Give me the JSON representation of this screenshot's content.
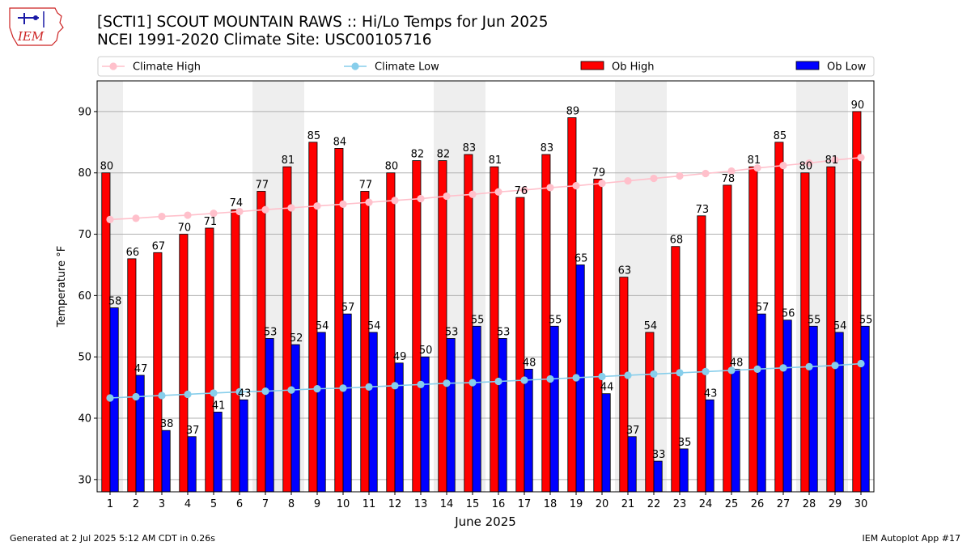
{
  "logo": {
    "text": "IEM",
    "icon": "iem-iowa-logo"
  },
  "title": "[SCTI1] SCOUT MOUNTAIN RAWS :: Hi/Lo Temps for Jun 2025",
  "subtitle": "NCEI 1991-2020 Climate Site: USC00105716",
  "footer": {
    "left": "Generated at 2 Jul 2025 5:12 AM CDT in 0.26s",
    "right": "IEM Autoplot App #17"
  },
  "colors": {
    "ob_high": "#ff0000",
    "ob_low": "#0000ff",
    "climate_high": "#ffc0cb",
    "climate_low": "#87ceeb",
    "weekend_shade": "#eeeeee",
    "grid": "#b0b0b0"
  },
  "chart_data": {
    "type": "bar",
    "xlabel": "June 2025",
    "ylabel": "Temperature °F",
    "ylim": [
      28,
      95
    ],
    "yticks": [
      30,
      40,
      50,
      60,
      70,
      80,
      90
    ],
    "grid": true,
    "legend_position": "top",
    "categories": [
      "1",
      "2",
      "3",
      "4",
      "5",
      "6",
      "7",
      "8",
      "9",
      "10",
      "11",
      "12",
      "13",
      "14",
      "15",
      "16",
      "17",
      "18",
      "19",
      "20",
      "21",
      "22",
      "23",
      "24",
      "25",
      "26",
      "27",
      "28",
      "29",
      "30"
    ],
    "shaded_days": [
      1,
      7,
      8,
      14,
      15,
      21,
      22,
      28,
      29
    ],
    "series": [
      {
        "name": "Climate High",
        "type": "line",
        "values": [
          72.4,
          72.6,
          72.9,
          73.1,
          73.4,
          73.7,
          74.0,
          74.3,
          74.6,
          74.9,
          75.2,
          75.5,
          75.8,
          76.2,
          76.5,
          76.9,
          77.2,
          77.6,
          77.9,
          78.3,
          78.7,
          79.1,
          79.5,
          79.9,
          80.3,
          80.8,
          81.2,
          81.6,
          82.1,
          82.5
        ]
      },
      {
        "name": "Climate Low",
        "type": "line",
        "values": [
          43.3,
          43.5,
          43.7,
          43.9,
          44.1,
          44.3,
          44.4,
          44.6,
          44.8,
          44.9,
          45.1,
          45.3,
          45.5,
          45.7,
          45.8,
          46.0,
          46.2,
          46.4,
          46.6,
          46.8,
          47.0,
          47.2,
          47.4,
          47.6,
          47.8,
          48.0,
          48.2,
          48.4,
          48.6,
          48.9
        ]
      },
      {
        "name": "Ob High",
        "type": "bar",
        "values": [
          80,
          66,
          67,
          70,
          71,
          74,
          77,
          81,
          85,
          84,
          77,
          80,
          82,
          82,
          83,
          81,
          76,
          83,
          89,
          79,
          63,
          54,
          68,
          73,
          78,
          81,
          85,
          80,
          81,
          90
        ]
      },
      {
        "name": "Ob Low",
        "type": "bar",
        "values": [
          58,
          47,
          38,
          37,
          41,
          43,
          53,
          52,
          54,
          57,
          54,
          49,
          50,
          53,
          55,
          53,
          48,
          55,
          65,
          44,
          37,
          33,
          35,
          43,
          48,
          57,
          56,
          55,
          54,
          55
        ]
      }
    ]
  }
}
